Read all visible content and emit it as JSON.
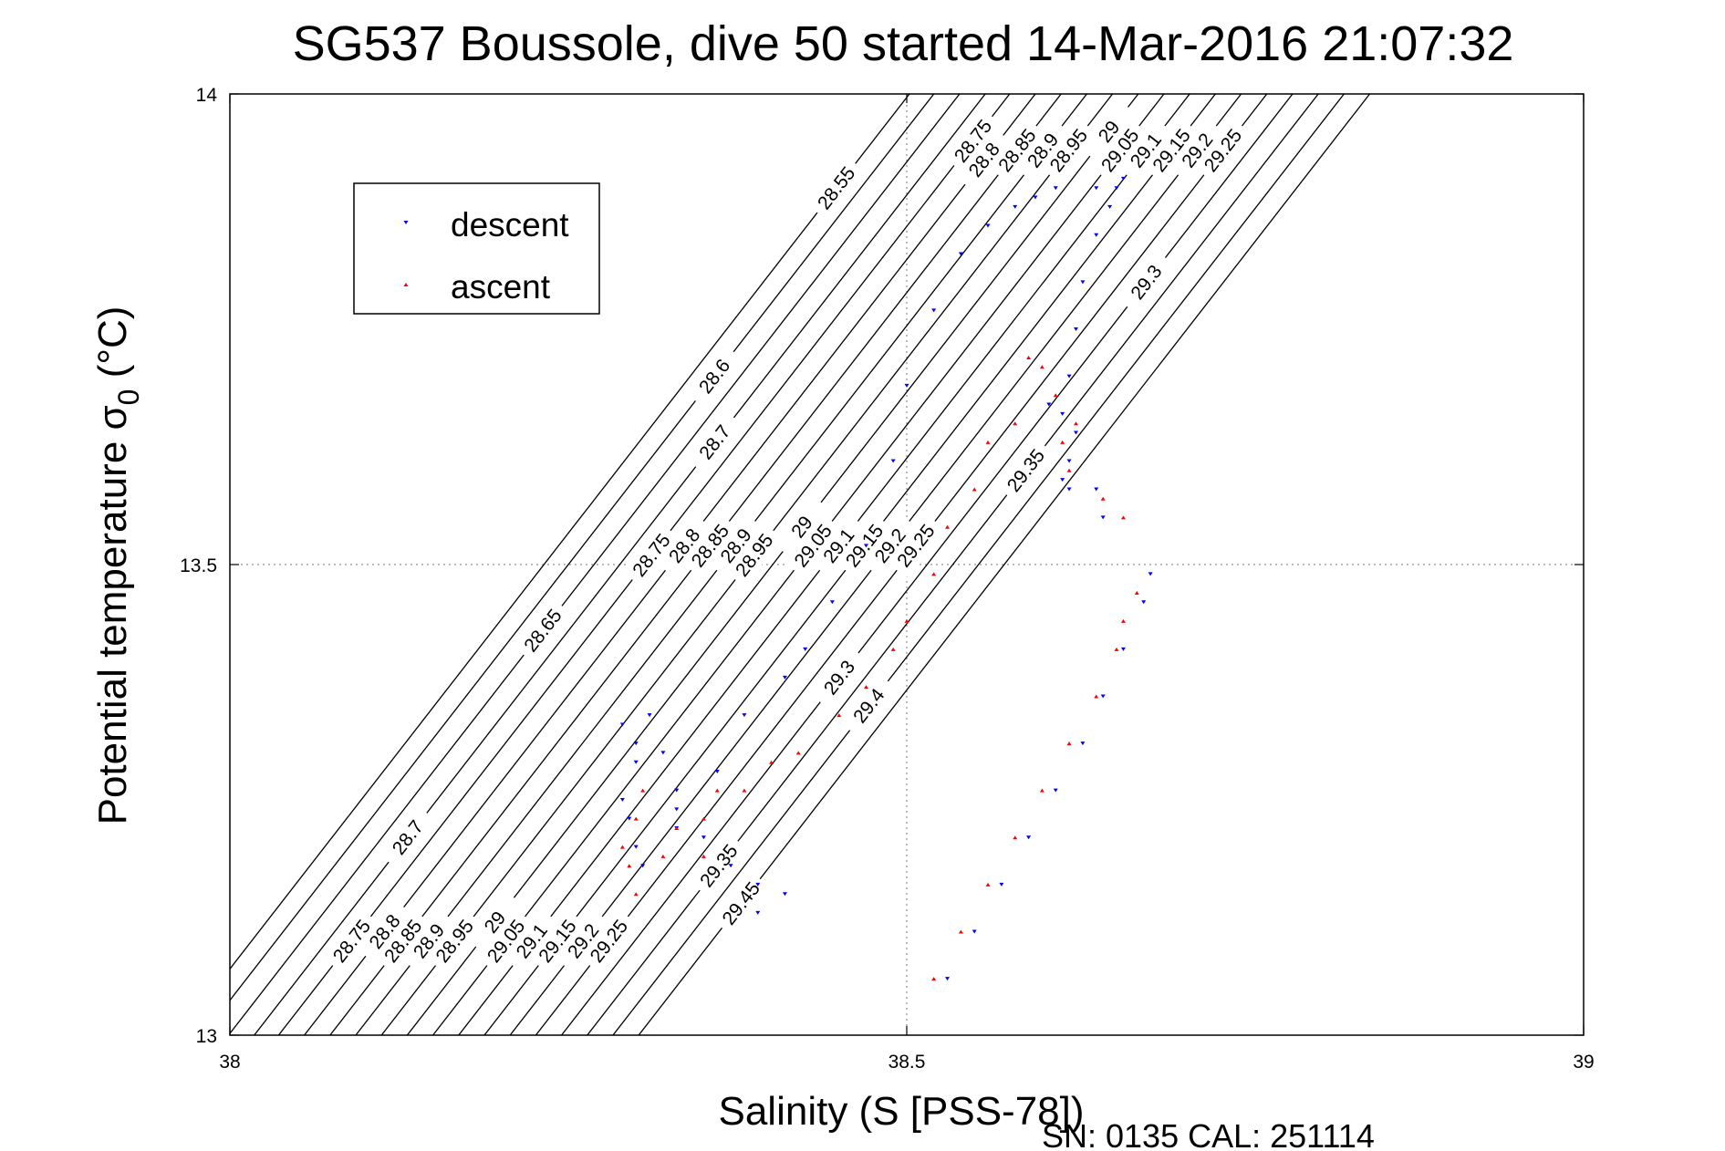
{
  "title": "SG537 Boussole, dive 50 started 14-Mar-2016 21:07:32",
  "footer": "SN: 0135  CAL: 251114",
  "chart_data": {
    "type": "scatter",
    "title": "SG537 Boussole, dive 50 started 14-Mar-2016 21:07:32",
    "xlabel": "Salinity (S [PSS-78])",
    "ylabel": "Potential temperature σ",
    "ylabel_subscript": "0",
    "ylabel_unit": " (°C)",
    "xlim": [
      38,
      39
    ],
    "ylim": [
      13,
      14
    ],
    "xticks": [
      38,
      38.5,
      39
    ],
    "xtick_labels": [
      "38",
      "38.5",
      "39"
    ],
    "yticks": [
      13,
      13.5,
      14
    ],
    "ytick_labels": [
      "13",
      "13.5",
      "14"
    ],
    "grid": true,
    "legend_position": "top-left",
    "colors": {
      "descent": "#0000ff",
      "ascent": "#ff0000",
      "contour": "#000000"
    },
    "series": [
      {
        "name": "descent",
        "marker": "triangle-down",
        "color": "#0000ff",
        "points": [
          [
            38.53,
            13.06
          ],
          [
            38.55,
            13.11
          ],
          [
            38.57,
            13.16
          ],
          [
            38.59,
            13.21
          ],
          [
            38.61,
            13.26
          ],
          [
            38.63,
            13.31
          ],
          [
            38.645,
            13.36
          ],
          [
            38.66,
            13.41
          ],
          [
            38.675,
            13.46
          ],
          [
            38.68,
            13.49
          ],
          [
            38.645,
            13.55
          ],
          [
            38.64,
            13.58
          ],
          [
            38.62,
            13.58
          ],
          [
            38.615,
            13.59
          ],
          [
            38.62,
            13.61
          ],
          [
            38.625,
            13.64
          ],
          [
            38.615,
            13.66
          ],
          [
            38.605,
            13.67
          ],
          [
            38.62,
            13.7
          ],
          [
            38.625,
            13.75
          ],
          [
            38.63,
            13.8
          ],
          [
            38.64,
            13.85
          ],
          [
            38.65,
            13.88
          ],
          [
            38.655,
            13.9
          ],
          [
            38.66,
            13.91
          ],
          [
            38.64,
            13.9
          ],
          [
            38.61,
            13.9
          ],
          [
            38.595,
            13.89
          ],
          [
            38.58,
            13.88
          ],
          [
            38.56,
            13.86
          ],
          [
            38.54,
            13.83
          ],
          [
            38.52,
            13.77
          ],
          [
            38.5,
            13.69
          ],
          [
            38.49,
            13.61
          ],
          [
            38.47,
            13.52
          ],
          [
            38.445,
            13.46
          ],
          [
            38.425,
            13.41
          ],
          [
            38.41,
            13.38
          ],
          [
            38.38,
            13.34
          ],
          [
            38.36,
            13.28
          ],
          [
            38.33,
            13.22
          ],
          [
            38.305,
            13.18
          ],
          [
            38.3,
            13.2
          ],
          [
            38.295,
            13.23
          ],
          [
            38.29,
            13.25
          ],
          [
            38.3,
            13.29
          ],
          [
            38.3,
            13.31
          ],
          [
            38.29,
            13.33
          ],
          [
            38.31,
            13.34
          ],
          [
            38.32,
            13.3
          ],
          [
            38.33,
            13.26
          ],
          [
            38.33,
            13.24
          ],
          [
            38.35,
            13.21
          ],
          [
            38.37,
            13.18
          ],
          [
            38.39,
            13.16
          ],
          [
            38.41,
            13.15
          ],
          [
            38.39,
            13.13
          ]
        ]
      },
      {
        "name": "ascent",
        "marker": "triangle-up",
        "color": "#ff0000",
        "points": [
          [
            38.52,
            13.06
          ],
          [
            38.54,
            13.11
          ],
          [
            38.56,
            13.16
          ],
          [
            38.58,
            13.21
          ],
          [
            38.6,
            13.26
          ],
          [
            38.62,
            13.31
          ],
          [
            38.64,
            13.36
          ],
          [
            38.655,
            13.41
          ],
          [
            38.66,
            13.44
          ],
          [
            38.67,
            13.47
          ],
          [
            38.66,
            13.55
          ],
          [
            38.645,
            13.57
          ],
          [
            38.62,
            13.6
          ],
          [
            38.615,
            13.63
          ],
          [
            38.625,
            13.65
          ],
          [
            38.61,
            13.68
          ],
          [
            38.6,
            13.71
          ],
          [
            38.59,
            13.72
          ],
          [
            38.58,
            13.65
          ],
          [
            38.56,
            13.63
          ],
          [
            38.55,
            13.58
          ],
          [
            38.53,
            13.54
          ],
          [
            38.52,
            13.49
          ],
          [
            38.5,
            13.44
          ],
          [
            38.49,
            13.41
          ],
          [
            38.47,
            13.37
          ],
          [
            38.45,
            13.34
          ],
          [
            38.42,
            13.3
          ],
          [
            38.4,
            13.29
          ],
          [
            38.38,
            13.26
          ],
          [
            38.36,
            13.26
          ],
          [
            38.35,
            13.23
          ],
          [
            38.33,
            13.22
          ],
          [
            38.32,
            13.19
          ],
          [
            38.3,
            13.15
          ],
          [
            38.295,
            13.18
          ],
          [
            38.29,
            13.2
          ],
          [
            38.3,
            13.23
          ],
          [
            38.305,
            13.26
          ],
          [
            38.35,
            13.19
          ]
        ]
      }
    ],
    "contours": [
      {
        "label": "28.55",
        "x0": 37.962,
        "y_label": 13.9
      },
      {
        "label": "28.6",
        "x0": 37.98,
        "y_label": 13.7
      },
      {
        "label": "28.65",
        "x0": 37.999,
        "y_label": 13.43
      },
      {
        "label": "28.7",
        "x0": 38.018,
        "y_label": 13.21
      },
      {
        "label": "28.7",
        "x0": 38.018,
        "y_label": 13.63
      },
      {
        "label": "28.75",
        "x0": 38.036,
        "y_label": 13.1
      },
      {
        "label": "28.75",
        "x0": 38.036,
        "y_label": 13.51
      },
      {
        "label": "28.75",
        "x0": 38.036,
        "y_label": 13.95
      },
      {
        "label": "28.8",
        "x0": 38.055,
        "y_label": 13.11
      },
      {
        "label": "28.8",
        "x0": 38.055,
        "y_label": 13.52
      },
      {
        "label": "28.8",
        "x0": 38.055,
        "y_label": 13.93
      },
      {
        "label": "28.85",
        "x0": 38.074,
        "y_label": 13.1
      },
      {
        "label": "28.85",
        "x0": 38.074,
        "y_label": 13.52
      },
      {
        "label": "28.85",
        "x0": 38.074,
        "y_label": 13.94
      },
      {
        "label": "28.9",
        "x0": 38.093,
        "y_label": 13.1
      },
      {
        "label": "28.9",
        "x0": 38.093,
        "y_label": 13.52
      },
      {
        "label": "28.9",
        "x0": 38.093,
        "y_label": 13.94
      },
      {
        "label": "28.95",
        "x0": 38.112,
        "y_label": 13.1
      },
      {
        "label": "28.95",
        "x0": 38.112,
        "y_label": 13.51
      },
      {
        "label": "28.95",
        "x0": 38.112,
        "y_label": 13.94
      },
      {
        "label": "29",
        "x0": 38.131,
        "y_label": 13.12
      },
      {
        "label": "29",
        "x0": 38.131,
        "y_label": 13.54
      },
      {
        "label": "29",
        "x0": 38.131,
        "y_label": 13.96
      },
      {
        "label": "29.05",
        "x0": 38.15,
        "y_label": 13.1
      },
      {
        "label": "29.05",
        "x0": 38.15,
        "y_label": 13.52
      },
      {
        "label": "29.05",
        "x0": 38.15,
        "y_label": 13.94
      },
      {
        "label": "29.1",
        "x0": 38.169,
        "y_label": 13.1
      },
      {
        "label": "29.1",
        "x0": 38.169,
        "y_label": 13.52
      },
      {
        "label": "29.1",
        "x0": 38.169,
        "y_label": 13.94
      },
      {
        "label": "29.15",
        "x0": 38.188,
        "y_label": 13.1
      },
      {
        "label": "29.15",
        "x0": 38.188,
        "y_label": 13.52
      },
      {
        "label": "29.15",
        "x0": 38.188,
        "y_label": 13.94
      },
      {
        "label": "29.2",
        "x0": 38.207,
        "y_label": 13.1
      },
      {
        "label": "29.2",
        "x0": 38.207,
        "y_label": 13.52
      },
      {
        "label": "29.2",
        "x0": 38.207,
        "y_label": 13.94
      },
      {
        "label": "29.25",
        "x0": 38.226,
        "y_label": 13.1
      },
      {
        "label": "29.25",
        "x0": 38.226,
        "y_label": 13.52
      },
      {
        "label": "29.25",
        "x0": 38.226,
        "y_label": 13.94
      },
      {
        "label": "29.3",
        "x0": 38.245,
        "y_label": 13.38
      },
      {
        "label": "29.3",
        "x0": 38.245,
        "y_label": 13.8
      },
      {
        "label": "29.35",
        "x0": 38.264,
        "y_label": 13.18
      },
      {
        "label": "29.35",
        "x0": 38.264,
        "y_label": 13.6
      },
      {
        "label": "29.4",
        "x0": 38.283,
        "y_label": 13.35
      },
      {
        "label": "29.45",
        "x0": 38.302,
        "y_label": 13.14
      }
    ]
  }
}
